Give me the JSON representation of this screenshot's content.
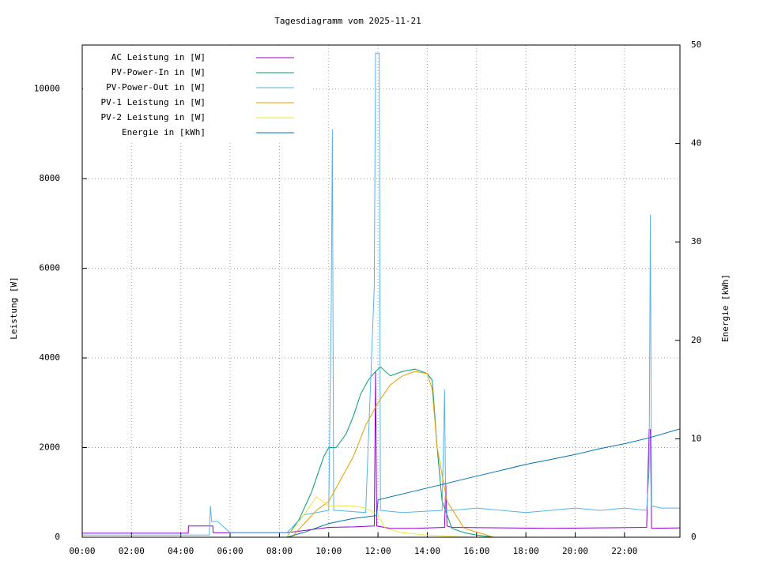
{
  "chart_data": {
    "type": "line",
    "title": "Tagesdiagramm vom 2025-11-21",
    "y_label": "Leistung [W]",
    "y2_label": "Energie [kWh]",
    "xlim": [
      0,
      24.25
    ],
    "ylim": [
      0,
      10980
    ],
    "y2lim": [
      0,
      50
    ],
    "xticks": [
      {
        "value": 0,
        "label": "00:00"
      },
      {
        "value": 2,
        "label": "02:00"
      },
      {
        "value": 4,
        "label": "04:00"
      },
      {
        "value": 6,
        "label": "06:00"
      },
      {
        "value": 8,
        "label": "08:00"
      },
      {
        "value": 10,
        "label": "10:00"
      },
      {
        "value": 12,
        "label": "12:00"
      },
      {
        "value": 14,
        "label": "14:00"
      },
      {
        "value": 16,
        "label": "16:00"
      },
      {
        "value": 18,
        "label": "18:00"
      },
      {
        "value": 20,
        "label": "20:00"
      },
      {
        "value": 22,
        "label": "22:00"
      }
    ],
    "yticks": [
      0,
      2000,
      4000,
      6000,
      8000,
      10000
    ],
    "y2ticks": [
      0,
      10,
      20,
      30,
      40,
      50
    ],
    "grid": true,
    "legend": "upper left",
    "series": [
      {
        "name": "AC Leistung in [W]",
        "color": "#9400d3",
        "x": [
          0,
          4.3,
          4.31,
          5.3,
          5.31,
          8.3,
          9,
          10,
          11,
          11.85,
          11.9,
          11.95,
          12.5,
          13.5,
          14.7,
          14.75,
          14.8,
          15,
          17,
          19,
          21,
          22.9,
          23,
          23.05,
          23.1,
          24.25
        ],
        "values": [
          90,
          90,
          250,
          250,
          100,
          100,
          150,
          220,
          230,
          250,
          3700,
          250,
          200,
          200,
          220,
          1200,
          250,
          220,
          210,
          200,
          210,
          220,
          2400,
          2400,
          200,
          210
        ]
      },
      {
        "name": "PV-Power-In in [W]",
        "color": "#009e73",
        "x": [
          0,
          8.3,
          8.8,
          9.3,
          9.8,
          10,
          10.3,
          10.7,
          11,
          11.3,
          11.6,
          11.9,
          12.1,
          12.5,
          13,
          13.5,
          14,
          14.2,
          14.4,
          14.6,
          15,
          15.5,
          16,
          16.7,
          24.25
        ],
        "values": [
          0,
          0,
          400,
          1000,
          1800,
          2000,
          2000,
          2300,
          2700,
          3200,
          3500,
          3700,
          3800,
          3600,
          3700,
          3750,
          3650,
          3500,
          2000,
          800,
          200,
          100,
          50,
          0,
          0
        ]
      },
      {
        "name": "PV-Power-Out in [W]",
        "color": "#56b4e9",
        "x": [
          0,
          5.15,
          5.2,
          5.25,
          5.5,
          6,
          8.3,
          9,
          10,
          10.1,
          10.15,
          10.2,
          10.3,
          11.5,
          11.85,
          11.9,
          12.05,
          12.1,
          13,
          14.6,
          14.7,
          14.75,
          15,
          16,
          17,
          18,
          19,
          20,
          21,
          22,
          22.9,
          23,
          23.05,
          23.1,
          23.5,
          24.25
        ],
        "values": [
          50,
          50,
          700,
          350,
          350,
          100,
          100,
          500,
          600,
          5000,
          9100,
          600,
          600,
          550,
          5600,
          10800,
          10800,
          600,
          550,
          600,
          3300,
          600,
          600,
          650,
          600,
          550,
          600,
          650,
          600,
          650,
          600,
          1500,
          7200,
          700,
          650,
          650
        ]
      },
      {
        "name": "PV-1 Leistung in [W]",
        "color": "#e69f00",
        "x": [
          0,
          8.5,
          9,
          9.5,
          10,
          10.5,
          11,
          11.5,
          12,
          12.5,
          13,
          13.5,
          14,
          14.2,
          14.4,
          14.8,
          15.5,
          16.7,
          24.25
        ],
        "values": [
          0,
          0,
          300,
          600,
          800,
          1300,
          1800,
          2500,
          3000,
          3400,
          3600,
          3700,
          3650,
          3300,
          2000,
          800,
          200,
          0,
          0
        ]
      },
      {
        "name": "PV-2 Leistung in [W]",
        "color": "#f0e442",
        "x": [
          0,
          8.3,
          9,
          9.5,
          10,
          10.5,
          11,
          11.5,
          12,
          12.3,
          13,
          14,
          15,
          16,
          24.25
        ],
        "values": [
          0,
          0,
          500,
          900,
          700,
          700,
          700,
          650,
          500,
          200,
          100,
          50,
          20,
          0,
          0
        ]
      },
      {
        "name": "Energie in [kWh]",
        "color": "#0072b2",
        "axis": "y2",
        "x": [
          0,
          8.3,
          9,
          10,
          11,
          11.95,
          12,
          13,
          14,
          15,
          16,
          17,
          18,
          19,
          20,
          21,
          22,
          23,
          24.25
        ],
        "values": [
          0,
          0,
          0.5,
          1.4,
          1.9,
          2.2,
          3.8,
          4.4,
          5.0,
          5.6,
          6.2,
          6.8,
          7.4,
          7.9,
          8.4,
          9.0,
          9.5,
          10.1,
          11.0
        ]
      }
    ]
  }
}
